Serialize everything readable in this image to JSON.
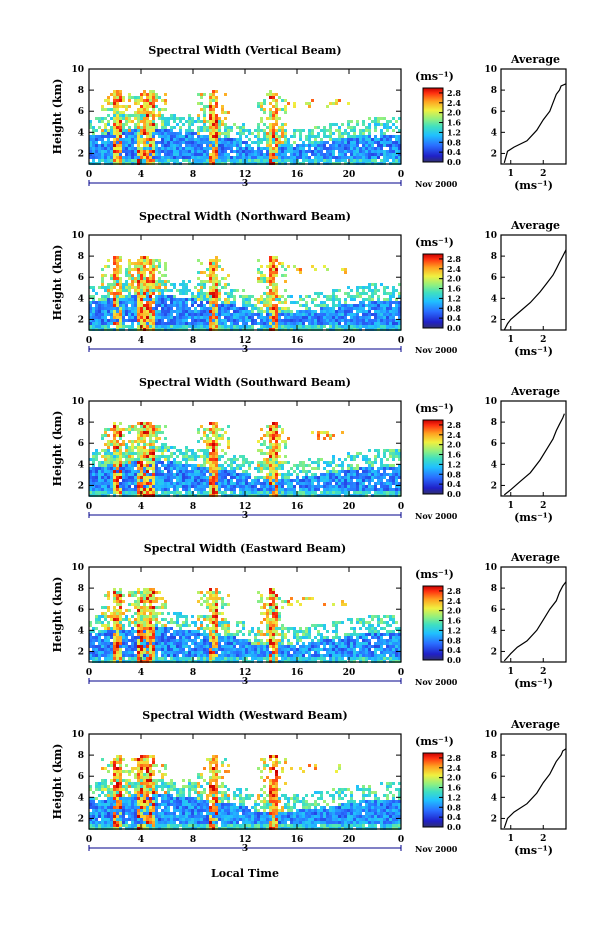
{
  "figure": {
    "time_axis_label": "Local Time",
    "date_label": "Nov 2000",
    "day_marker": "3",
    "height_label": "Height (km)",
    "colorbar_unit": "(ms⁻¹)",
    "avg_title": "Average",
    "avg_xlabel": "(ms⁻¹)"
  },
  "chart_data": [
    {
      "type": "heatmap",
      "title": "Spectral Width (Vertical Beam)",
      "xlabel": "",
      "ylabel": "Height (km)",
      "x_ticks": [
        "0",
        "4",
        "8",
        "12",
        "16",
        "20",
        "0"
      ],
      "y_ticks": [
        "2",
        "4",
        "6",
        "8",
        "10"
      ],
      "xlim": [
        0,
        24
      ],
      "ylim": [
        1,
        10
      ],
      "colorbar": {
        "ticks": [
          "0.0",
          "0.4",
          "0.8",
          "1.2",
          "1.6",
          "2.0",
          "2.4",
          "2.8"
        ],
        "range": [
          0.0,
          3.0
        ]
      },
      "average_profile": {
        "type": "line",
        "title": "Average",
        "xlabel": "(ms⁻¹)",
        "x_ticks": [
          "1",
          "2"
        ],
        "y_ticks": [
          "2",
          "4",
          "6",
          "8",
          "10"
        ],
        "xlim": [
          0.7,
          2.7
        ],
        "ylim": [
          1,
          10
        ],
        "points": [
          [
            0.8,
            1.1
          ],
          [
            0.9,
            2.2
          ],
          [
            1.1,
            2.6
          ],
          [
            1.5,
            3.2
          ],
          [
            1.8,
            4.2
          ],
          [
            2.0,
            5.2
          ],
          [
            2.2,
            6.0
          ],
          [
            2.3,
            6.8
          ],
          [
            2.4,
            7.6
          ],
          [
            2.5,
            8.0
          ],
          [
            2.55,
            8.4
          ],
          [
            2.7,
            8.6
          ]
        ]
      }
    },
    {
      "type": "heatmap",
      "title": "Spectral Width (Northward Beam)",
      "xlabel": "",
      "ylabel": "Height (km)",
      "x_ticks": [
        "0",
        "4",
        "8",
        "12",
        "16",
        "20",
        "0"
      ],
      "y_ticks": [
        "2",
        "4",
        "6",
        "8",
        "10"
      ],
      "xlim": [
        0,
        24
      ],
      "ylim": [
        1,
        10
      ],
      "colorbar": {
        "ticks": [
          "0.0",
          "0.4",
          "0.8",
          "1.2",
          "1.6",
          "2.0",
          "2.4",
          "2.8"
        ],
        "range": [
          0.0,
          3.0
        ]
      },
      "average_profile": {
        "type": "line",
        "title": "Average",
        "xlabel": "(ms⁻¹)",
        "x_ticks": [
          "1",
          "2"
        ],
        "y_ticks": [
          "2",
          "4",
          "6",
          "8",
          "10"
        ],
        "xlim": [
          0.7,
          2.7
        ],
        "ylim": [
          1,
          10
        ],
        "points": [
          [
            0.8,
            1.0
          ],
          [
            0.9,
            1.6
          ],
          [
            1.0,
            2.0
          ],
          [
            1.3,
            2.8
          ],
          [
            1.6,
            3.6
          ],
          [
            1.9,
            4.6
          ],
          [
            2.1,
            5.4
          ],
          [
            2.3,
            6.2
          ],
          [
            2.4,
            6.8
          ],
          [
            2.5,
            7.4
          ],
          [
            2.6,
            8.0
          ],
          [
            2.7,
            8.6
          ]
        ]
      }
    },
    {
      "type": "heatmap",
      "title": "Spectral Width (Southward Beam)",
      "xlabel": "",
      "ylabel": "Height (km)",
      "x_ticks": [
        "0",
        "4",
        "8",
        "12",
        "16",
        "20",
        "0"
      ],
      "y_ticks": [
        "2",
        "4",
        "6",
        "8",
        "10"
      ],
      "xlim": [
        0,
        24
      ],
      "ylim": [
        1,
        10
      ],
      "colorbar": {
        "ticks": [
          "0.0",
          "0.4",
          "0.8",
          "1.2",
          "1.6",
          "2.0",
          "2.4",
          "2.8"
        ],
        "range": [
          0.0,
          3.0
        ]
      },
      "average_profile": {
        "type": "line",
        "title": "Average",
        "xlabel": "(ms⁻¹)",
        "x_ticks": [
          "1",
          "2"
        ],
        "y_ticks": [
          "2",
          "4",
          "6",
          "8",
          "10"
        ],
        "xlim": [
          0.7,
          2.7
        ],
        "ylim": [
          1,
          10
        ],
        "points": [
          [
            0.8,
            1.1
          ],
          [
            1.0,
            1.6
          ],
          [
            1.3,
            2.4
          ],
          [
            1.6,
            3.2
          ],
          [
            1.9,
            4.4
          ],
          [
            2.1,
            5.4
          ],
          [
            2.3,
            6.4
          ],
          [
            2.4,
            7.2
          ],
          [
            2.5,
            7.8
          ],
          [
            2.6,
            8.4
          ],
          [
            2.65,
            8.8
          ]
        ]
      }
    },
    {
      "type": "heatmap",
      "title": "Spectral Width (Eastward Beam)",
      "xlabel": "",
      "ylabel": "Height (km)",
      "x_ticks": [
        "0",
        "4",
        "8",
        "12",
        "16",
        "20",
        "0"
      ],
      "y_ticks": [
        "2",
        "4",
        "6",
        "8",
        "10"
      ],
      "xlim": [
        0,
        24
      ],
      "ylim": [
        1,
        10
      ],
      "colorbar": {
        "ticks": [
          "0.0",
          "0.4",
          "0.8",
          "1.2",
          "1.6",
          "2.0",
          "2.4",
          "2.8"
        ],
        "range": [
          0.0,
          3.0
        ]
      },
      "average_profile": {
        "type": "line",
        "title": "Average",
        "xlabel": "(ms⁻¹)",
        "x_ticks": [
          "1",
          "2"
        ],
        "y_ticks": [
          "2",
          "4",
          "6",
          "8",
          "10"
        ],
        "xlim": [
          0.7,
          2.7
        ],
        "ylim": [
          1,
          10
        ],
        "points": [
          [
            0.8,
            1.1
          ],
          [
            1.0,
            1.8
          ],
          [
            1.2,
            2.4
          ],
          [
            1.5,
            3.0
          ],
          [
            1.8,
            4.0
          ],
          [
            2.0,
            5.0
          ],
          [
            2.2,
            6.0
          ],
          [
            2.4,
            6.8
          ],
          [
            2.5,
            7.6
          ],
          [
            2.6,
            8.2
          ],
          [
            2.7,
            8.6
          ]
        ]
      }
    },
    {
      "type": "heatmap",
      "title": "Spectral Width (Westward Beam)",
      "xlabel": "Local Time",
      "ylabel": "Height (km)",
      "x_ticks": [
        "0",
        "4",
        "8",
        "12",
        "16",
        "20",
        "0"
      ],
      "y_ticks": [
        "2",
        "4",
        "6",
        "8",
        "10"
      ],
      "xlim": [
        0,
        24
      ],
      "ylim": [
        1,
        10
      ],
      "colorbar": {
        "ticks": [
          "0.0",
          "0.4",
          "0.8",
          "1.2",
          "1.6",
          "2.0",
          "2.4",
          "2.8"
        ],
        "range": [
          0.0,
          3.0
        ]
      },
      "average_profile": {
        "type": "line",
        "title": "Average",
        "xlabel": "(ms⁻¹)",
        "x_ticks": [
          "1",
          "2"
        ],
        "y_ticks": [
          "2",
          "4",
          "6",
          "8",
          "10"
        ],
        "xlim": [
          0.7,
          2.7
        ],
        "ylim": [
          1,
          10
        ],
        "points": [
          [
            0.8,
            1.1
          ],
          [
            0.9,
            2.0
          ],
          [
            1.1,
            2.6
          ],
          [
            1.5,
            3.4
          ],
          [
            1.8,
            4.4
          ],
          [
            2.0,
            5.4
          ],
          [
            2.2,
            6.2
          ],
          [
            2.3,
            6.8
          ],
          [
            2.4,
            7.4
          ],
          [
            2.55,
            8.0
          ],
          [
            2.6,
            8.4
          ],
          [
            2.7,
            8.6
          ]
        ]
      }
    }
  ]
}
